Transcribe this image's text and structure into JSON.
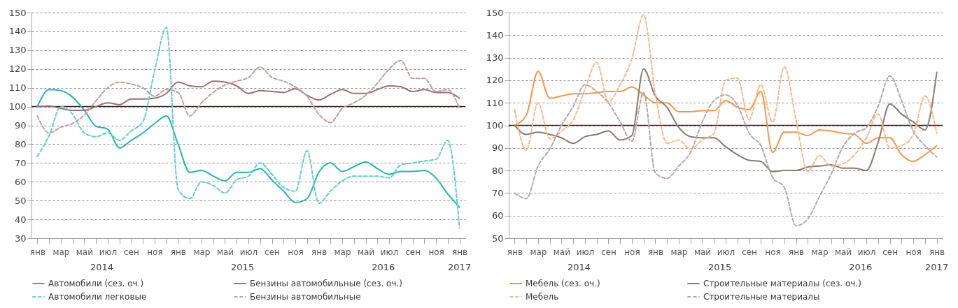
{
  "chart_data": [
    {
      "type": "line",
      "categories": [
        "янв",
        null,
        "мар",
        null,
        "май",
        null,
        "июл",
        null,
        "сен",
        null,
        "ноя",
        null,
        "янв",
        null,
        "мар",
        null,
        "май",
        null,
        "июл",
        null,
        "сен",
        null,
        "ноя",
        null,
        "янв",
        null,
        "мар",
        null,
        "май",
        null,
        "июл",
        null,
        "сен",
        null,
        "ноя",
        null,
        "янв"
      ],
      "annotations": [
        "2014",
        "2015",
        "2016",
        "2017"
      ],
      "ylim": [
        30,
        150
      ],
      "yticks": [
        30,
        40,
        50,
        60,
        70,
        80,
        90,
        100,
        110,
        120,
        130,
        140,
        150
      ],
      "grid": "y",
      "legend": "bottom",
      "ref_lines": [
        {
          "axis": "y",
          "value": 100,
          "color": "#3b2624"
        }
      ],
      "series": [
        {
          "name": "Автомобили (сез. оч.)",
          "color": "#1fb8b0",
          "line_style": "solid",
          "values": [
            100,
            109,
            108.5,
            105,
            98,
            89.5,
            88,
            78,
            82,
            86,
            91,
            95,
            80,
            65,
            66,
            63,
            60.5,
            65,
            65,
            67,
            61,
            55,
            49,
            51,
            65,
            70,
            65.5,
            68,
            70.5,
            67,
            64,
            65.5,
            65.5,
            66,
            62,
            53.5,
            46.5
          ]
        },
        {
          "name": "Бензины автомобильные (сез. оч.)",
          "color": "#9b716d",
          "line_style": "solid",
          "values": [
            100,
            100.3,
            99,
            98,
            98,
            100,
            102,
            101,
            104,
            104,
            104.5,
            107,
            113,
            111,
            110.5,
            113.5,
            113,
            111,
            107,
            108.5,
            108,
            107.5,
            109.5,
            106,
            103.5,
            106.5,
            109,
            107,
            107,
            109,
            111,
            110.5,
            108,
            109,
            107.5,
            107.5,
            104.5
          ]
        },
        {
          "name": "Автомобили легковые",
          "color": "#5fd0ca",
          "line_style": "dashed",
          "values": [
            73.5,
            84.5,
            100,
            96,
            86,
            84,
            86,
            82,
            87,
            92,
            119,
            142,
            56,
            51,
            60,
            58,
            54,
            61,
            63,
            70,
            64,
            57,
            55,
            76.5,
            48.5,
            55,
            60.5,
            63,
            63,
            63,
            62,
            69,
            70,
            71,
            72,
            82,
            35.5
          ]
        },
        {
          "name": "Бензины автомобильные",
          "color": "#bda09c",
          "line_style": "dashed",
          "values": [
            95,
            86,
            89,
            91,
            95.5,
            103,
            110,
            113,
            112,
            110,
            105.5,
            109,
            107.5,
            95,
            102,
            107.5,
            111.5,
            113.5,
            115.5,
            121,
            115.5,
            113.5,
            110.5,
            105.5,
            96,
            91.5,
            99,
            102,
            106,
            112.5,
            120,
            124.5,
            115,
            115,
            108,
            109,
            99
          ]
        }
      ]
    },
    {
      "type": "line",
      "categories": [
        "янв",
        null,
        "мар",
        null,
        "май",
        null,
        "июл",
        null,
        "сен",
        null,
        "ноя",
        null,
        "янв",
        null,
        "мар",
        null,
        "май",
        null,
        "июл",
        null,
        "сен",
        null,
        "ноя",
        null,
        "янв",
        null,
        "мар",
        null,
        "май",
        null,
        "июл",
        null,
        "сен",
        null,
        "ноя",
        null,
        "янв"
      ],
      "annotations": [
        "2014",
        "2015",
        "2016",
        "2017"
      ],
      "ylim": [
        50,
        150
      ],
      "yticks": [
        50,
        60,
        70,
        80,
        90,
        100,
        110,
        120,
        130,
        140,
        150
      ],
      "grid": "y",
      "legend": "bottom",
      "ref_lines": [
        {
          "axis": "y",
          "value": 100,
          "color": "#3b2624"
        }
      ],
      "series": [
        {
          "name": "Мебель (сез. оч.)",
          "color": "#f79646",
          "line_style": "solid",
          "values": [
            100,
            104.5,
            124,
            112,
            113,
            114,
            114,
            114.5,
            115,
            115,
            117,
            113.5,
            110,
            110,
            106,
            106,
            106.5,
            106.5,
            111,
            108,
            107,
            115,
            88,
            97,
            97,
            95.5,
            98,
            97.5,
            96.5,
            96,
            92,
            94.5,
            94.5,
            87,
            84,
            87,
            91
          ]
        },
        {
          "name": "Строительные материалы (сез. оч.)",
          "color": "#8a7a72",
          "line_style": "solid",
          "values": [
            100,
            96,
            97,
            96,
            94.5,
            92,
            95,
            96,
            97.5,
            93.5,
            95.5,
            125,
            113,
            108,
            99,
            95,
            94.5,
            94.5,
            90.5,
            87,
            84.5,
            84,
            79.5,
            80,
            80,
            81.5,
            82,
            82.5,
            81,
            81,
            80,
            92.5,
            109.5,
            105,
            101.5,
            98,
            123.5
          ]
        },
        {
          "name": "Мебель",
          "color": "#fbb88a",
          "line_style": "dashed",
          "values": [
            107,
            89,
            110,
            94,
            97.5,
            102.5,
            116,
            128,
            110.5,
            118,
            129.5,
            149,
            114,
            92,
            93.5,
            89.5,
            93.5,
            96.5,
            120,
            121,
            102.5,
            118,
            101.5,
            126,
            102.5,
            79.5,
            86.5,
            82,
            83,
            87,
            94.5,
            105,
            90,
            91,
            96,
            113,
            96.5
          ]
        },
        {
          "name": "Строительные материалы",
          "color": "#b3aaa5",
          "line_style": "dashed",
          "values": [
            70,
            67.5,
            82,
            89.5,
            100,
            108.5,
            118,
            115,
            110,
            101.5,
            93,
            114.5,
            79,
            76.5,
            82,
            88,
            101.5,
            111,
            113.5,
            109,
            96.5,
            91,
            77,
            72.5,
            55.5,
            58.5,
            68.5,
            78.5,
            90.5,
            96.5,
            99,
            108.5,
            122,
            111,
            97.5,
            91,
            86
          ]
        }
      ]
    }
  ]
}
